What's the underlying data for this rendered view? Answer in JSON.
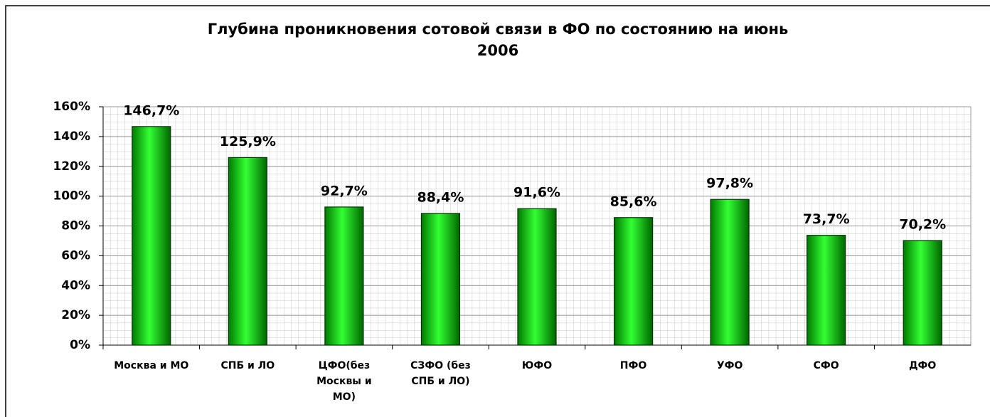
{
  "chart_data": {
    "type": "bar",
    "title": "Глубина проникновения сотовой связи в ФО по состоянию на июнь 2006",
    "categories": [
      "Москва и МО",
      "СПБ и ЛО",
      "ЦФО(без Москвы и МО)",
      "СЗФО (без СПБ и ЛО)",
      "ЮФО",
      "ПФО",
      "УФО",
      "СФО",
      "ДФО"
    ],
    "values": [
      146.7,
      125.9,
      92.7,
      88.4,
      91.6,
      85.6,
      97.8,
      73.7,
      70.2
    ],
    "value_labels": [
      "146,7%",
      "125,9%",
      "92,7%",
      "88,4%",
      "91,6%",
      "85,6%",
      "97,8%",
      "73,7%",
      "70,2%"
    ],
    "color": "#00e000",
    "ylim": [
      0,
      160
    ],
    "yticks": [
      {
        "value": 0,
        "label": "0%"
      },
      {
        "value": 20,
        "label": "20%"
      },
      {
        "value": 40,
        "label": "40%"
      },
      {
        "value": 60,
        "label": "60%"
      },
      {
        "value": 80,
        "label": "80%"
      },
      {
        "value": 100,
        "label": "100%"
      },
      {
        "value": 120,
        "label": "120%"
      },
      {
        "value": 140,
        "label": "140%"
      },
      {
        "value": 160,
        "label": "160%"
      }
    ],
    "grid": true
  }
}
